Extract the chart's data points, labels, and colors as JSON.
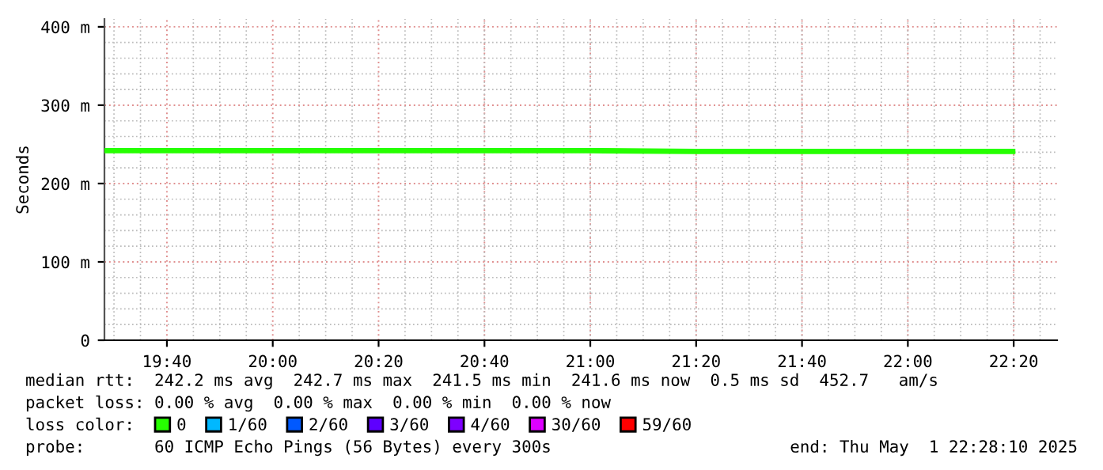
{
  "chart_data": {
    "type": "line",
    "ylabel": "Seconds",
    "x": [
      19.47,
      20.0,
      20.5,
      21.0,
      21.33,
      21.5,
      22.0,
      22.33
    ],
    "xlim": [
      19.47,
      22.47
    ],
    "xticks": [
      {
        "value": 19.6667,
        "label": "19:40"
      },
      {
        "value": 20.0,
        "label": "20:00"
      },
      {
        "value": 20.3333,
        "label": "20:20"
      },
      {
        "value": 20.6667,
        "label": "20:40"
      },
      {
        "value": 21.0,
        "label": "21:00"
      },
      {
        "value": 21.3333,
        "label": "21:20"
      },
      {
        "value": 21.6667,
        "label": "21:40"
      },
      {
        "value": 22.0,
        "label": "22:00"
      },
      {
        "value": 22.3333,
        "label": "22:20"
      }
    ],
    "ylim": [
      0,
      410
    ],
    "yticks": [
      0,
      {
        "value": 100,
        "label": "100 m"
      },
      {
        "value": 200,
        "label": "200 m"
      },
      {
        "value": 300,
        "label": "300 m"
      },
      {
        "value": 400,
        "label": "400 m"
      }
    ],
    "grid": true,
    "legend": "bottom",
    "legend_title": "loss color:",
    "series": [
      {
        "name": "0",
        "color": "#26ff00",
        "values": [
          242,
          242,
          242,
          242,
          241,
          241,
          241,
          241
        ]
      },
      {
        "name": "1/60",
        "color": "#00b8ff",
        "values": [
          null,
          null,
          null,
          null,
          null,
          null,
          null,
          null
        ]
      },
      {
        "name": "2/60",
        "color": "#0059ff",
        "values": [
          null,
          null,
          null,
          null,
          null,
          null,
          null,
          null
        ]
      },
      {
        "name": "3/60",
        "color": "#5e00ff",
        "values": [
          null,
          null,
          null,
          null,
          null,
          null,
          null,
          null
        ]
      },
      {
        "name": "4/60",
        "color": "#7e00ff",
        "values": [
          null,
          null,
          null,
          null,
          null,
          null,
          null,
          null
        ]
      },
      {
        "name": "30/60",
        "color": "#dd00ff",
        "values": [
          null,
          null,
          null,
          null,
          null,
          null,
          null,
          null
        ]
      },
      {
        "name": "59/60",
        "color": "#ff0000",
        "values": [
          null,
          null,
          null,
          null,
          null,
          null,
          null,
          null
        ]
      }
    ],
    "annotations": [
      "median rtt:  242.2 ms avg  242.7 ms max  241.5 ms min  241.6 ms now  0.5 ms sd  452.7   am/s",
      "packet loss: 0.00 % avg  0.00 % max  0.00 % min  0.00 % now",
      "probe:       60 ICMP Echo Pings (56 Bytes) every 300s",
      "end: Thu May  1 22:28:10 2025"
    ]
  }
}
